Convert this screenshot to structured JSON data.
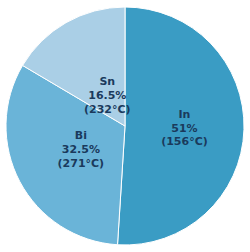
{
  "chart_data": {
    "type": "pie",
    "values": [
      51.0,
      32.5,
      16.5
    ],
    "value_labels": [
      "In\n51%\n(156°C)",
      "Bi\n32.5%\n(271°C)",
      "Sn\n16.5%\n(232°C)"
    ],
    "colors": [
      "#3a9cc4",
      "#6ab4d8",
      "#aacfe6"
    ]
  }
}
